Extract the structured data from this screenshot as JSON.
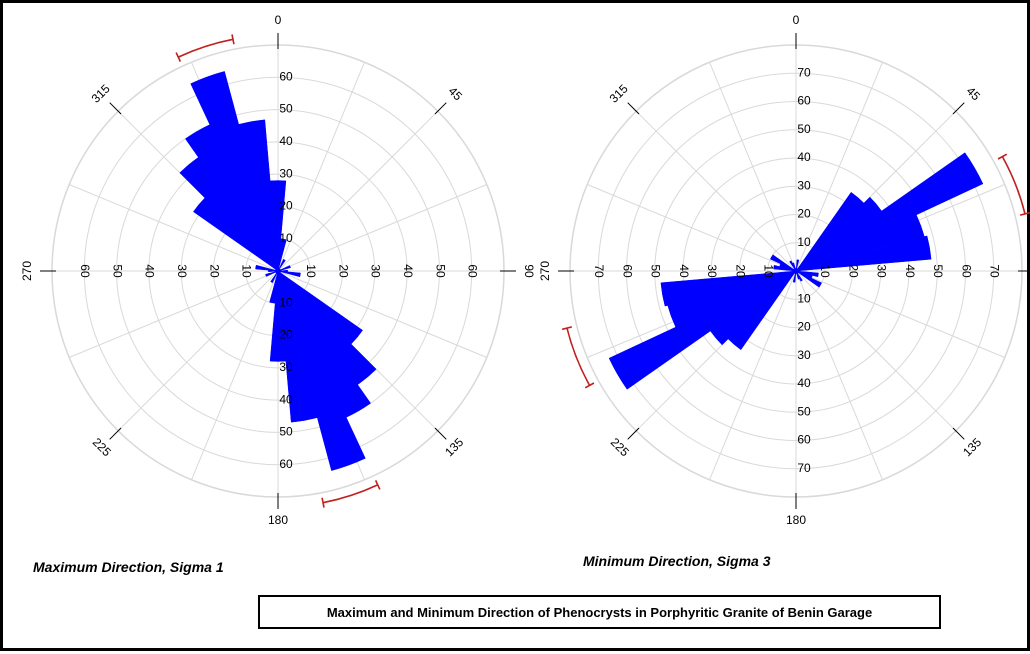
{
  "colors": {
    "petal": "#0000ff",
    "grid": "#d9d9d9",
    "axis": "#000000",
    "confidence_arc": "#c0201e",
    "background": "#ffffff"
  },
  "caption": "Maximum and Minimum Direction of Phenocrysts in Porphyritic Granite of Benin Garage",
  "chart_data": [
    {
      "type": "rose",
      "title": "Maximum Direction, Sigma 1",
      "direction_labels": [
        "0",
        "45",
        "90",
        "135",
        "180",
        "225",
        "270",
        "315"
      ],
      "radial_labels": [
        "10",
        "20",
        "30",
        "40",
        "50",
        "60"
      ],
      "radial_max": 70,
      "bin_width_deg": 10,
      "petals": [
        {
          "azimuth": 340,
          "value": 64
        },
        {
          "azimuth": 350,
          "value": 47
        },
        {
          "azimuth": 0,
          "value": 28
        },
        {
          "azimuth": 10,
          "value": 10
        },
        {
          "azimuth": 30,
          "value": 4
        },
        {
          "azimuth": 70,
          "value": 4
        },
        {
          "azimuth": 90,
          "value": 3
        },
        {
          "azimuth": 100,
          "value": 7
        },
        {
          "azimuth": 130,
          "value": 32
        },
        {
          "azimuth": 140,
          "value": 43
        },
        {
          "azimuth": 150,
          "value": 50
        },
        {
          "azimuth": 160,
          "value": 64
        },
        {
          "azimuth": 170,
          "value": 47
        },
        {
          "azimuth": 180,
          "value": 28
        },
        {
          "azimuth": 190,
          "value": 10
        },
        {
          "azimuth": 210,
          "value": 4
        },
        {
          "azimuth": 250,
          "value": 4
        },
        {
          "azimuth": 270,
          "value": 3
        },
        {
          "azimuth": 280,
          "value": 7
        },
        {
          "azimuth": 310,
          "value": 32
        },
        {
          "azimuth": 320,
          "value": 43
        },
        {
          "azimuth": 330,
          "value": 50
        }
      ],
      "confidence_arcs": [
        {
          "from": 335,
          "to": 349
        },
        {
          "from": 155,
          "to": 169
        }
      ]
    },
    {
      "type": "rose",
      "title": "Minimum Direction, Sigma 3",
      "direction_labels": [
        "0",
        "45",
        "90",
        "135",
        "180",
        "225",
        "270",
        "315"
      ],
      "radial_labels": [
        "10",
        "20",
        "30",
        "40",
        "50",
        "60",
        "70"
      ],
      "radial_max": 80,
      "bin_width_deg": 10,
      "petals": [
        {
          "azimuth": 10,
          "value": 4
        },
        {
          "azimuth": 40,
          "value": 34
        },
        {
          "azimuth": 50,
          "value": 37
        },
        {
          "azimuth": 60,
          "value": 73
        },
        {
          "azimuth": 70,
          "value": 47
        },
        {
          "azimuth": 80,
          "value": 48
        },
        {
          "azimuth": 100,
          "value": 8
        },
        {
          "azimuth": 110,
          "value": 6
        },
        {
          "azimuth": 120,
          "value": 10
        },
        {
          "azimuth": 150,
          "value": 4
        },
        {
          "azimuth": 160,
          "value": 3
        },
        {
          "azimuth": 190,
          "value": 4
        },
        {
          "azimuth": 220,
          "value": 34
        },
        {
          "azimuth": 230,
          "value": 37
        },
        {
          "azimuth": 240,
          "value": 73
        },
        {
          "azimuth": 250,
          "value": 47
        },
        {
          "azimuth": 260,
          "value": 48
        },
        {
          "azimuth": 280,
          "value": 8
        },
        {
          "azimuth": 290,
          "value": 6
        },
        {
          "azimuth": 300,
          "value": 10
        },
        {
          "azimuth": 330,
          "value": 4
        },
        {
          "azimuth": 340,
          "value": 3
        }
      ],
      "confidence_arcs": [
        {
          "from": 61,
          "to": 76
        },
        {
          "from": 241,
          "to": 256
        }
      ]
    }
  ]
}
